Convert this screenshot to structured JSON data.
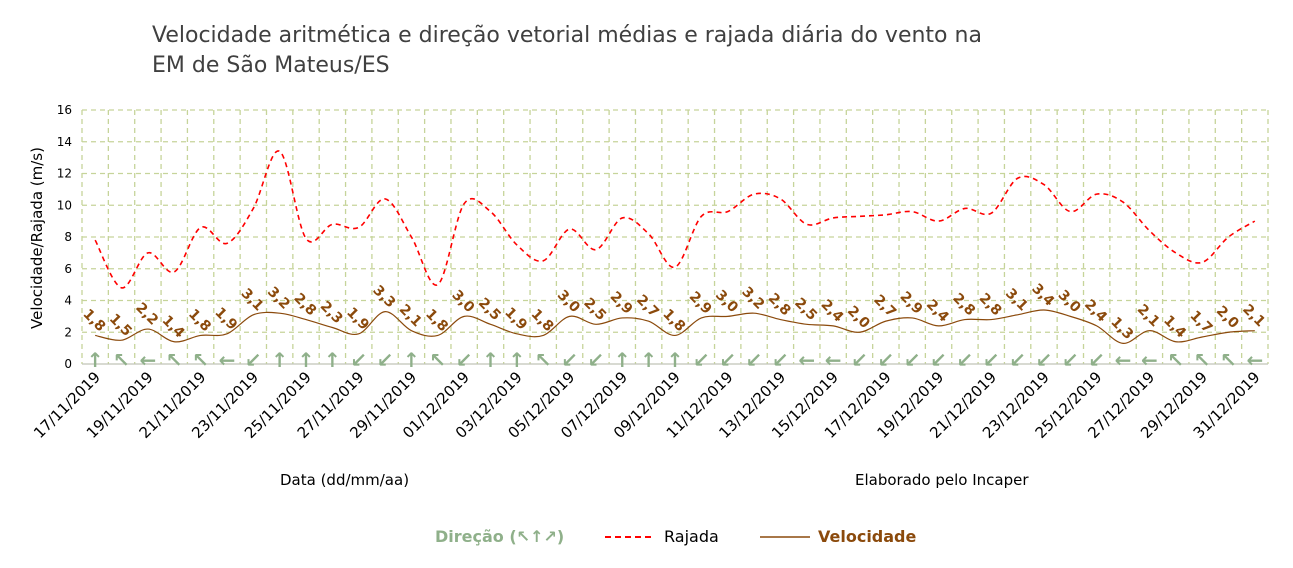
{
  "chart_data": {
    "type": "line",
    "title_line1": "Velocidade aritmética e direção vetorial médias e rajada diária do vento na",
    "title_line2": "EM de São Mateus/ES",
    "xlabel": "Data (dd/mm/aa)",
    "ylabel": "Velocidade/Rajada (m/s)",
    "note": "Elaborado pelo Incaper",
    "ylim": [
      0,
      16
    ],
    "yticks": [
      "0",
      "2",
      "4",
      "6",
      "8",
      "10",
      "12",
      "14",
      "16"
    ],
    "grid": true,
    "legend_position": "bottom",
    "x": [
      "17/11/2019",
      "18/11/2019",
      "19/11/2019",
      "20/11/2019",
      "21/11/2019",
      "22/11/2019",
      "23/11/2019",
      "24/11/2019",
      "25/11/2019",
      "26/11/2019",
      "27/11/2019",
      "28/11/2019",
      "29/11/2019",
      "30/11/2019",
      "01/12/2019",
      "02/12/2019",
      "03/12/2019",
      "04/12/2019",
      "05/12/2019",
      "06/12/2019",
      "07/12/2019",
      "08/12/2019",
      "09/12/2019",
      "10/12/2019",
      "11/12/2019",
      "12/12/2019",
      "13/12/2019",
      "14/12/2019",
      "15/12/2019",
      "16/12/2019",
      "17/12/2019",
      "18/12/2019",
      "19/12/2019",
      "20/12/2019",
      "21/12/2019",
      "22/12/2019",
      "23/12/2019",
      "24/12/2019",
      "25/12/2019",
      "26/12/2019",
      "27/12/2019",
      "28/12/2019",
      "29/12/2019",
      "30/12/2019",
      "31/12/2019"
    ],
    "xtick_labels": [
      "17/11/2019",
      "19/11/2019",
      "21/11/2019",
      "23/11/2019",
      "25/11/2019",
      "27/11/2019",
      "29/11/2019",
      "01/12/2019",
      "03/12/2019",
      "05/12/2019",
      "07/12/2019",
      "09/12/2019",
      "11/12/2019",
      "13/12/2019",
      "15/12/2019",
      "17/12/2019",
      "19/12/2019",
      "21/12/2019",
      "23/12/2019",
      "25/12/2019",
      "27/12/2019",
      "29/12/2019",
      "31/12/2019"
    ],
    "series": [
      {
        "name": "Rajada",
        "color": "#ff0000",
        "style": "dashed",
        "values": [
          7.8,
          4.8,
          7.0,
          5.8,
          8.6,
          7.6,
          9.8,
          13.4,
          7.9,
          8.8,
          8.6,
          10.4,
          8.0,
          5.0,
          10.1,
          9.6,
          7.5,
          6.5,
          8.5,
          7.2,
          9.2,
          8.2,
          6.1,
          9.3,
          9.6,
          10.7,
          10.4,
          8.8,
          9.2,
          9.3,
          9.4,
          9.6,
          9.0,
          9.8,
          9.5,
          11.7,
          11.3,
          9.6,
          10.7,
          10.2,
          8.4,
          7.0,
          6.4,
          8.0,
          9.0
        ]
      },
      {
        "name": "Velocidade",
        "color": "#8b4a0c",
        "style": "solid",
        "values": [
          1.8,
          1.5,
          2.2,
          1.4,
          1.8,
          1.9,
          3.1,
          3.2,
          2.8,
          2.3,
          1.9,
          3.3,
          2.1,
          1.8,
          3.0,
          2.5,
          1.9,
          1.8,
          3.0,
          2.5,
          2.9,
          2.7,
          1.8,
          2.9,
          3.0,
          3.2,
          2.8,
          2.5,
          2.4,
          2.0,
          2.7,
          2.9,
          2.4,
          2.8,
          2.8,
          3.1,
          3.4,
          3.0,
          2.4,
          1.3,
          2.1,
          1.4,
          1.7,
          2.0,
          2.1
        ],
        "labels": [
          "1,8",
          "1,5",
          "2,2",
          "1,4",
          "1,8",
          "1,9",
          "3,1",
          "3,2",
          "2,8",
          "2,3",
          "1,9",
          "3,3",
          "2,1",
          "1,8",
          "3,0",
          "2,5",
          "1,9",
          "1,8",
          "3,0",
          "2,5",
          "2,9",
          "2,7",
          "1,8",
          "2,9",
          "3,0",
          "3,2",
          "2,8",
          "2,5",
          "2,4",
          "2,0",
          "2,7",
          "2,9",
          "2,4",
          "2,8",
          "2,8",
          "3,1",
          "3,4",
          "3,0",
          "2,4",
          "1,3",
          "2,1",
          "1,4",
          "1,7",
          "2,0",
          "2,1"
        ]
      },
      {
        "name": "Direção (↖↑↗)",
        "color": "#8fb08a",
        "directions": [
          "↑",
          "↖",
          "←",
          "↖",
          "↖",
          "←",
          "↙",
          "↑",
          "↑",
          "↑",
          "↙",
          "↙",
          "↑",
          "↖",
          "↙",
          "↑",
          "↑",
          "↖",
          "↙",
          "↙",
          "↑",
          "↑",
          "↑",
          "↙",
          "↙",
          "↙",
          "↙",
          "←",
          "←",
          "↙",
          "↙",
          "↙",
          "↙",
          "↙",
          "↙",
          "↙",
          "↙",
          "↙",
          "↙",
          "←",
          "←",
          "↖",
          "↖",
          "↖",
          "←"
        ]
      }
    ]
  },
  "legend": {
    "direction_label": "Direção (↖↑↗)",
    "rajada_label": "Rajada",
    "velocidade_label": "Velocidade"
  }
}
